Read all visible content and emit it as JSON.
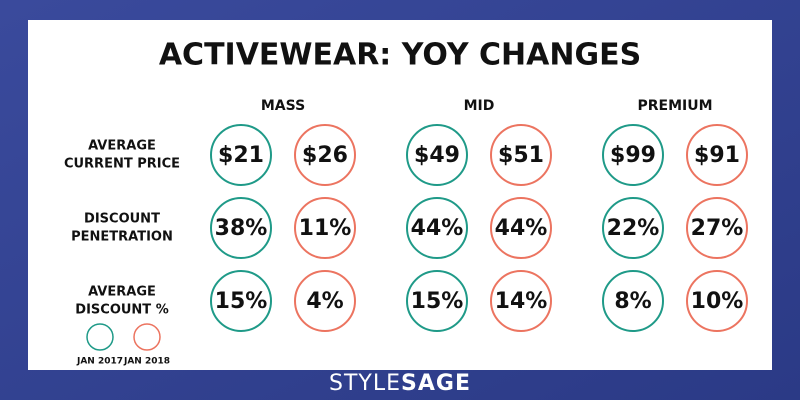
{
  "title": "ACTIVEWEAR: YOY CHANGES",
  "columns": [
    "MASS",
    "MID",
    "PREMIUM"
  ],
  "rows": [
    {
      "label": [
        "AVERAGE",
        "CURRENT PRICE"
      ],
      "cells": [
        [
          "$21",
          "$26"
        ],
        [
          "$49",
          "$51"
        ],
        [
          "$99",
          "$91"
        ]
      ]
    },
    {
      "label": [
        "DISCOUNT",
        "PENETRATION"
      ],
      "cells": [
        [
          "38%",
          "11%"
        ],
        [
          "44%",
          "44%"
        ],
        [
          "22%",
          "27%"
        ]
      ]
    },
    {
      "label": [
        "AVERAGE",
        "DISCOUNT %"
      ],
      "cells": [
        [
          "15%",
          "4%"
        ],
        [
          "15%",
          "14%"
        ],
        [
          "8%",
          "10%"
        ]
      ]
    }
  ],
  "legend": [
    "JAN 2017",
    "JAN 2018"
  ],
  "logo": [
    "STYLE",
    "SAGE"
  ]
}
